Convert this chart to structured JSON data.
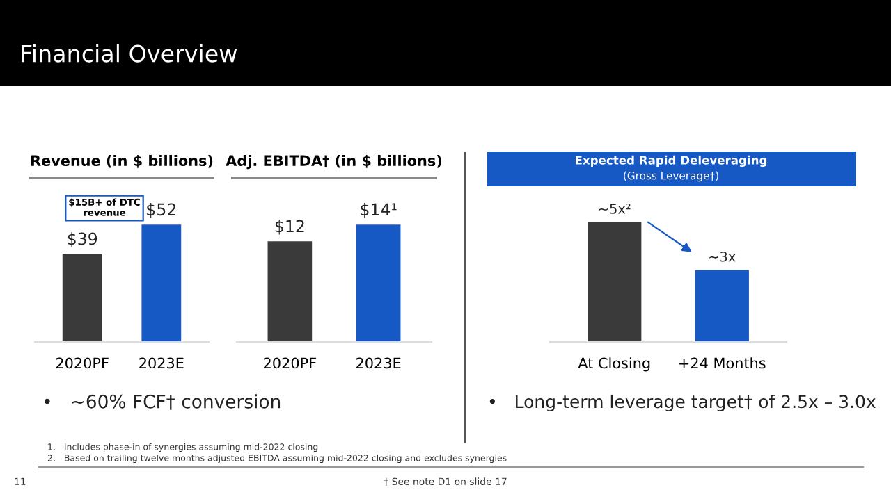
{
  "chart_data": [
    {
      "type": "other",
      "title": "Financial Overview",
      "annotations": [
        "1.   Includes phase-in of synergies assuming mid-2022 closing",
        "2.   Based on trailing twelve months adjusted EBITDA assuming mid-2022 closing and excludes synergies",
        "† See note D1 on slide 17",
        "11"
      ]
    },
    {
      "type": "bar",
      "title": "Revenue (in $ billions)",
      "categories": [
        "2020PF",
        "2023E"
      ],
      "values": [
        39,
        52
      ],
      "colors": [
        "#3a3a3a",
        "#1759c4"
      ],
      "value_labels": [
        "$39",
        "$52"
      ],
      "annotations": [
        {
          "text": "$15B+ of DTC\nrevenue",
          "x": "2023E",
          "y": 52
        },
        "•   ~60% FCF† conversion"
      ]
    },
    {
      "type": "bar",
      "title": "Adj. EBITDA† (in $ billions)",
      "categories": [
        "2020PF",
        "2023E"
      ],
      "values": [
        12,
        14
      ],
      "colors": [
        "#3a3a3a",
        "#1759c4"
      ],
      "value_labels": [
        "$12",
        "$14¹"
      ]
    },
    {
      "type": "bar",
      "title": "Expected Rapid Deleveraging",
      "subtitle": "(Gross Leverage†)",
      "categories": [
        "At Closing",
        "+24 Months"
      ],
      "values": [
        5,
        3
      ],
      "colors": [
        "#3a3a3a",
        "#1759c4"
      ],
      "value_labels": [
        "~5x²",
        "~3x"
      ],
      "annotations": [
        "•   Long-term leverage target† of 2.5x – 3.0x"
      ]
    }
  ]
}
